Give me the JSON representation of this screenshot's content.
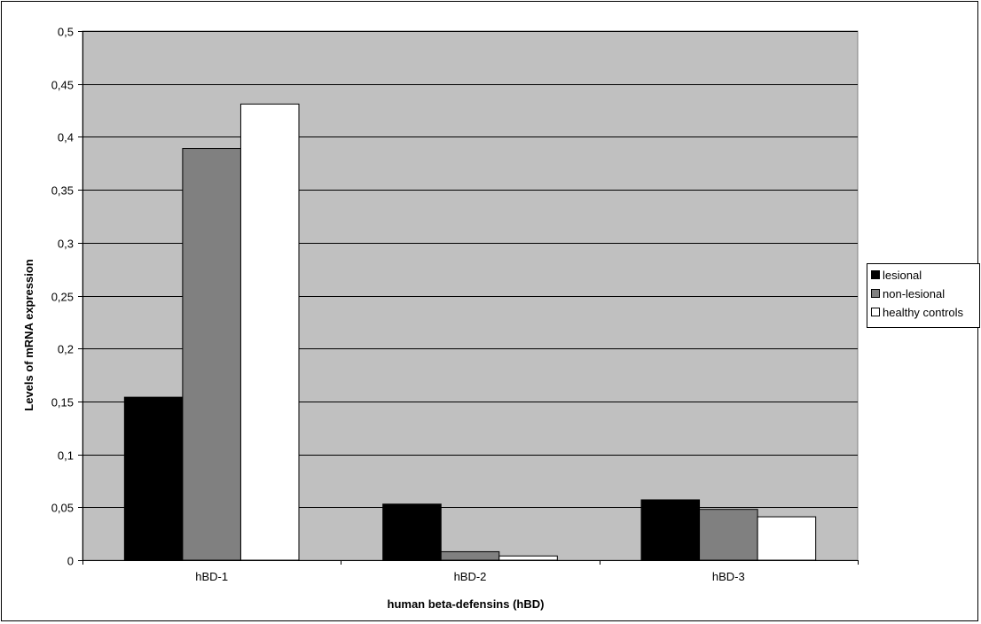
{
  "chart_data": {
    "type": "bar",
    "categories": [
      "hBD-1",
      "hBD-2",
      "hBD-3"
    ],
    "series": [
      {
        "name": "lesional",
        "color": "#000000",
        "values": [
          0.154,
          0.053,
          0.057
        ]
      },
      {
        "name": "non-lesional",
        "color": "#808080",
        "values": [
          0.389,
          0.008,
          0.048
        ]
      },
      {
        "name": "healthy controls",
        "color": "#ffffff",
        "values": [
          0.431,
          0.004,
          0.041
        ]
      }
    ],
    "title": "",
    "xlabel": "human beta-defensins (hBD)",
    "ylabel": "Levels of mRNA expression",
    "ylim": [
      0,
      0.5
    ],
    "yticks": [
      0,
      0.05,
      0.1,
      0.15,
      0.2,
      0.25,
      0.3,
      0.35,
      0.4,
      0.45,
      0.5
    ],
    "ytick_labels": [
      "0",
      "0,05",
      "0,1",
      "0,15",
      "0,2",
      "0,25",
      "0,3",
      "0,35",
      "0,4",
      "0,45",
      "0,5"
    ],
    "grid": true,
    "plot_background": "#c0c0c0",
    "legend_position": "right"
  }
}
